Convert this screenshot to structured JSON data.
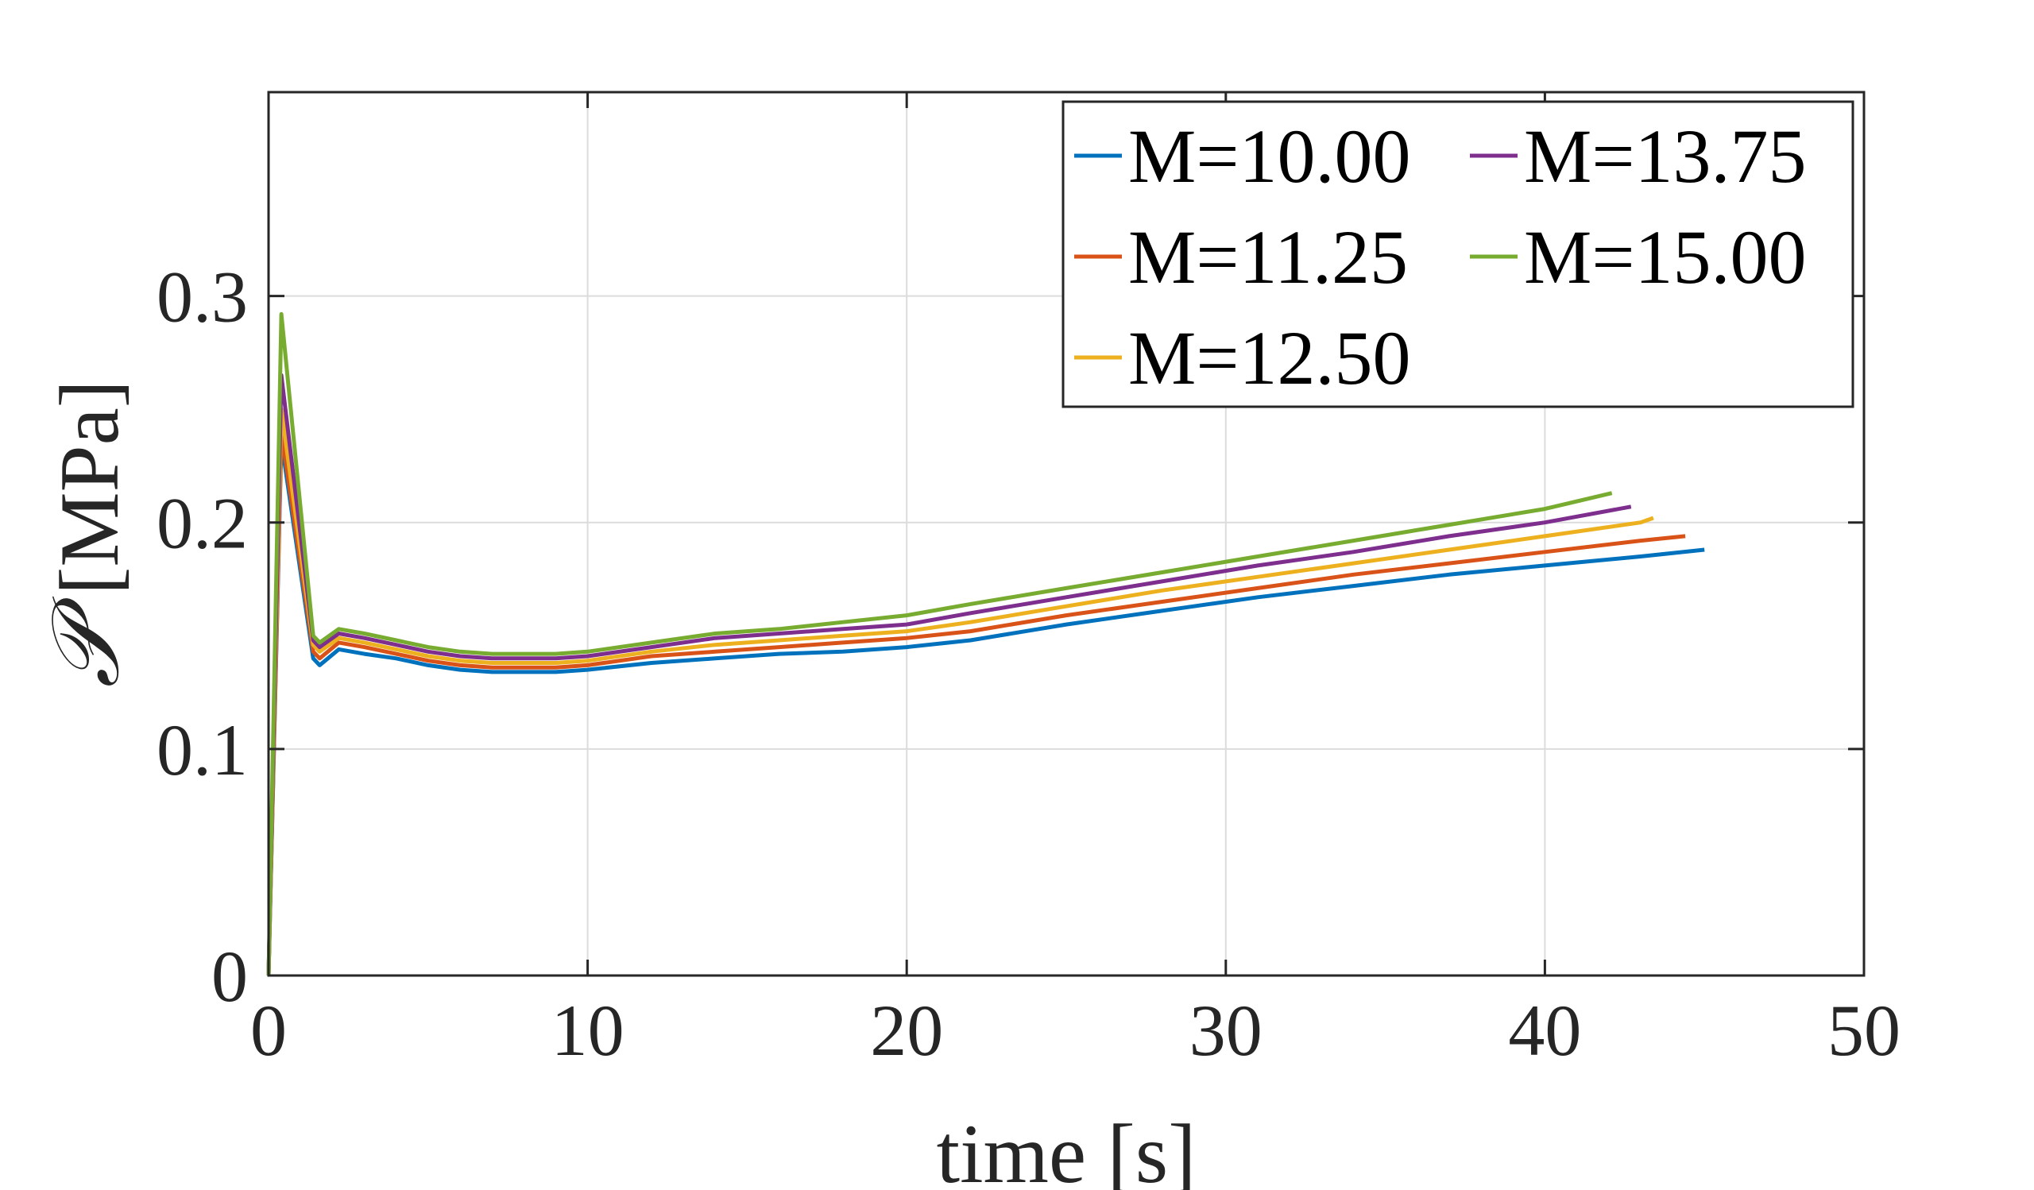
{
  "chart_data": {
    "type": "line",
    "title": "",
    "xlabel": "time [s]",
    "ylabel_symbol": "𝒫",
    "ylabel_unit": "[MPa]",
    "xlim": [
      0,
      50
    ],
    "ylim": [
      0,
      0.39
    ],
    "xticks": [
      0,
      10,
      20,
      30,
      40,
      50
    ],
    "xtick_labels": [
      "0",
      "10",
      "20",
      "30",
      "40",
      "50"
    ],
    "yticks": [
      0,
      0.1,
      0.2,
      0.3
    ],
    "ytick_labels": [
      "0",
      "0.1",
      "0.2",
      "0.3"
    ],
    "grid": true,
    "legend_position": "top-right",
    "series": [
      {
        "name": "M=10.00",
        "color": "#0072BD",
        "x": [
          0,
          0.4,
          1.4,
          1.6,
          2.2,
          3,
          4,
          5,
          6,
          7,
          8,
          9,
          10,
          12,
          14,
          16,
          18,
          20,
          22,
          25,
          28,
          31,
          34,
          37,
          40,
          43,
          45
        ],
        "y": [
          0,
          0.236,
          0.14,
          0.137,
          0.144,
          0.142,
          0.14,
          0.137,
          0.135,
          0.134,
          0.134,
          0.134,
          0.135,
          0.138,
          0.14,
          0.142,
          0.143,
          0.145,
          0.148,
          0.155,
          0.161,
          0.167,
          0.172,
          0.177,
          0.181,
          0.185,
          0.188
        ]
      },
      {
        "name": "M=11.25",
        "color": "#D95319",
        "x": [
          0,
          0.4,
          1.4,
          1.6,
          2.2,
          3,
          4,
          5,
          6,
          7,
          8,
          9,
          10,
          12,
          14,
          16,
          18,
          20,
          22,
          25,
          28,
          31,
          34,
          37,
          40,
          43,
          44.4
        ],
        "y": [
          0,
          0.24,
          0.143,
          0.14,
          0.147,
          0.145,
          0.142,
          0.139,
          0.137,
          0.136,
          0.136,
          0.136,
          0.137,
          0.141,
          0.143,
          0.145,
          0.147,
          0.149,
          0.152,
          0.159,
          0.165,
          0.171,
          0.177,
          0.182,
          0.187,
          0.192,
          0.194
        ]
      },
      {
        "name": "M=12.50",
        "color": "#EDB120",
        "x": [
          0,
          0.4,
          1.4,
          1.6,
          2.2,
          3,
          4,
          5,
          6,
          7,
          8,
          9,
          10,
          12,
          14,
          16,
          18,
          20,
          22,
          25,
          28,
          31,
          34,
          37,
          40,
          43,
          43.4
        ],
        "y": [
          0,
          0.25,
          0.146,
          0.143,
          0.149,
          0.147,
          0.144,
          0.141,
          0.139,
          0.138,
          0.138,
          0.138,
          0.139,
          0.143,
          0.146,
          0.148,
          0.15,
          0.152,
          0.156,
          0.163,
          0.17,
          0.176,
          0.182,
          0.188,
          0.194,
          0.2,
          0.202
        ]
      },
      {
        "name": "M=13.75",
        "color": "#7E2F8E",
        "x": [
          0,
          0.4,
          1.4,
          1.6,
          2.2,
          3,
          4,
          5,
          6,
          7,
          8,
          9,
          10,
          12,
          14,
          16,
          18,
          20,
          22,
          25,
          28,
          31,
          34,
          37,
          40,
          42.7
        ],
        "y": [
          0,
          0.265,
          0.148,
          0.145,
          0.151,
          0.149,
          0.146,
          0.143,
          0.141,
          0.14,
          0.14,
          0.14,
          0.141,
          0.145,
          0.149,
          0.151,
          0.153,
          0.155,
          0.16,
          0.167,
          0.174,
          0.181,
          0.187,
          0.194,
          0.2,
          0.207
        ]
      },
      {
        "name": "M=15.00",
        "color": "#77AC30",
        "x": [
          0,
          0.4,
          1.4,
          1.6,
          2.2,
          3,
          4,
          5,
          6,
          7,
          8,
          9,
          10,
          12,
          14,
          16,
          18,
          20,
          22,
          25,
          28,
          31,
          34,
          37,
          40,
          42.1
        ],
        "y": [
          0,
          0.292,
          0.15,
          0.147,
          0.153,
          0.151,
          0.148,
          0.145,
          0.143,
          0.142,
          0.142,
          0.142,
          0.143,
          0.147,
          0.151,
          0.153,
          0.156,
          0.159,
          0.164,
          0.171,
          0.178,
          0.185,
          0.192,
          0.199,
          0.206,
          0.213
        ]
      }
    ]
  }
}
